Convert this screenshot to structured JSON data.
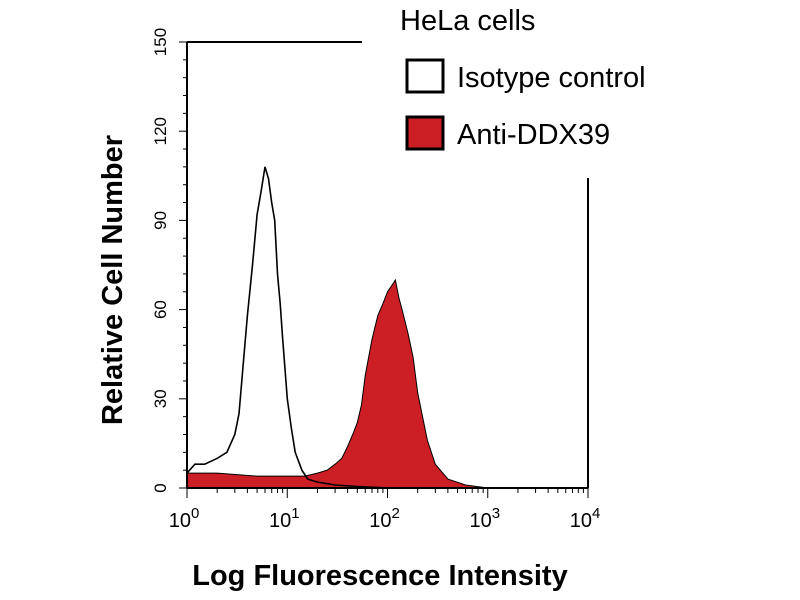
{
  "chart_data": {
    "type": "area",
    "title": "HeLa cells",
    "xlabel": "Log Fluorescence Intensity",
    "ylabel": "Relative Cell Number",
    "xscale": "log",
    "xlim": [
      1,
      10000
    ],
    "ylim": [
      0,
      150
    ],
    "x_ticks": [
      {
        "base": "10",
        "exp": "0"
      },
      {
        "base": "10",
        "exp": "1"
      },
      {
        "base": "10",
        "exp": "2"
      },
      {
        "base": "10",
        "exp": "3"
      },
      {
        "base": "10",
        "exp": "4"
      }
    ],
    "y_ticks": [
      "0",
      "30",
      "60",
      "90",
      "120",
      "150"
    ],
    "y_tick_values": [
      0,
      30,
      60,
      90,
      120,
      150
    ],
    "legend_position": "top-right",
    "series": [
      {
        "name": "Isotype control",
        "color": "#ffffff",
        "stroke": "#000000",
        "x": [
          1,
          1.2,
          1.5,
          2,
          2.5,
          3,
          3.3,
          3.6,
          4,
          4.5,
          5,
          5.5,
          6,
          6.5,
          7,
          7.5,
          8,
          8.5,
          9,
          10,
          11,
          12,
          14,
          16,
          20,
          30,
          50,
          100,
          1000,
          10000
        ],
        "values": [
          5,
          8,
          8,
          10,
          12,
          18,
          25,
          40,
          58,
          75,
          92,
          100,
          108,
          104,
          96,
          90,
          72,
          62,
          50,
          30,
          20,
          12,
          6,
          3,
          2,
          1,
          0.5,
          0,
          0,
          0
        ]
      },
      {
        "name": "Anti-DDX39",
        "color": "#cc1f25",
        "stroke": "#000000",
        "x": [
          1,
          2,
          5,
          10,
          15,
          20,
          25,
          30,
          35,
          40,
          45,
          50,
          55,
          60,
          70,
          80,
          90,
          100,
          110,
          120,
          130,
          140,
          160,
          180,
          200,
          250,
          300,
          400,
          600,
          1000,
          10000
        ],
        "values": [
          5,
          5,
          4,
          4,
          4,
          5,
          6,
          8,
          10,
          14,
          18,
          22,
          28,
          38,
          50,
          58,
          62,
          66,
          68,
          70,
          64,
          60,
          52,
          44,
          32,
          16,
          8,
          3,
          1,
          0,
          0
        ]
      }
    ]
  }
}
